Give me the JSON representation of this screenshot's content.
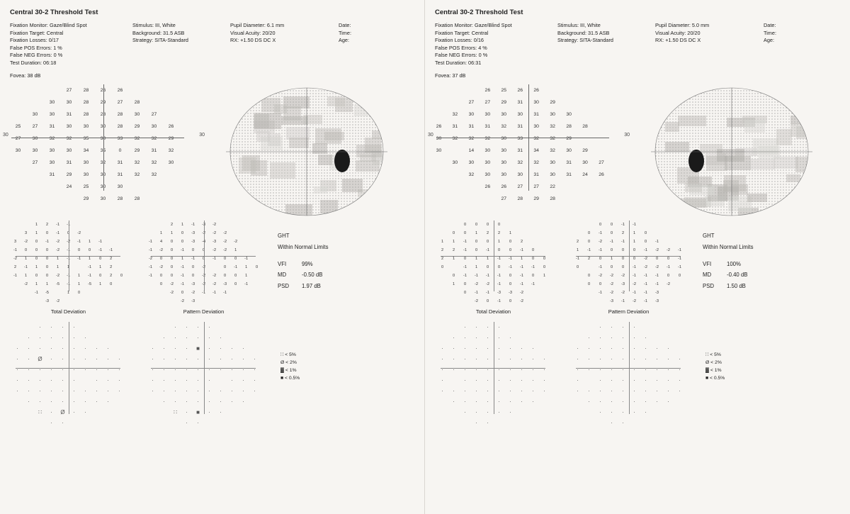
{
  "test_title": "Central 30-2 Threshold Test",
  "header_labels": {
    "fix_mon": "Fixation Monitor:",
    "fix_tgt": "Fixation Target:",
    "fix_loss": "Fixation Losses:",
    "fpe": "False POS Errors:",
    "fne": "False NEG Errors:",
    "dur": "Test Duration:",
    "fovea": "Fovea:",
    "stim": "Stimulus:",
    "bg": "Background:",
    "strat": "Strategy:",
    "pupil": "Pupil Diameter:",
    "va": "Visual Acuity:",
    "rx": "RX:",
    "date": "Date:",
    "time": "Time:",
    "age": "Age:"
  },
  "stats_labels": {
    "ght": "GHT",
    "vfi": "VFI",
    "md": "MD",
    "psd": "PSD",
    "td": "Total Deviation",
    "pd": "Pattern Deviation"
  },
  "legend": [
    "∷ < 5%",
    "Ø < 2%",
    "▓ < 1%",
    "■ < 0.5%"
  ],
  "colors": {
    "bg": "#f7f5f2",
    "text": "#222222",
    "axis": "#666666",
    "gray_ring": "#7a7a7a",
    "blindspot": "#1a1a1a"
  },
  "left": {
    "header": {
      "fix_mon": "Gaze/Blind Spot",
      "fix_tgt": "Central",
      "fix_loss": "0/17",
      "fpe": "1 %",
      "fne": "0 %",
      "dur": "06:18",
      "fovea": "38 dB",
      "stim": "III, White",
      "bg": "31.5 ASB",
      "strat": "SITA-Standard",
      "pupil": "6.1 mm",
      "va": "20/20",
      "rx": "+1.50 DS    DC  X",
      "date": "",
      "time": "",
      "age": ""
    },
    "thresh_rows": [
      [
        "",
        "",
        "",
        "27",
        "28",
        "26",
        "26",
        "",
        "",
        ""
      ],
      [
        "",
        "",
        "30",
        "30",
        "28",
        "29",
        "27",
        "28",
        "",
        ""
      ],
      [
        "",
        "30",
        "30",
        "31",
        "28",
        "28",
        "28",
        "30",
        "27",
        ""
      ],
      [
        "25",
        "27",
        "31",
        "30",
        "30",
        "30",
        "28",
        "29",
        "30",
        "26"
      ],
      [
        "27",
        "30",
        "32",
        "32",
        "35",
        "30",
        "33",
        "32",
        "32",
        "29"
      ],
      [
        "30",
        "30",
        "30",
        "30",
        "34",
        "35",
        "0",
        "29",
        "31",
        "32"
      ],
      [
        "",
        "27",
        "30",
        "31",
        "30",
        "32",
        "31",
        "32",
        "32",
        "30"
      ],
      [
        "",
        "",
        "31",
        "29",
        "30",
        "30",
        "31",
        "32",
        "32",
        ""
      ],
      [
        "",
        "",
        "",
        "24",
        "25",
        "30",
        "30",
        "",
        "",
        ""
      ],
      [
        "",
        "",
        "",
        "",
        "29",
        "30",
        "28",
        "28",
        "",
        "",
        ""
      ]
    ],
    "thresh_side_left": "30",
    "thresh_side_right": "30",
    "total_dev_rows": [
      [
        "",
        "",
        "1",
        "2",
        "-1",
        "-1",
        "",
        "",
        ""
      ],
      [
        "",
        "3",
        "1",
        "0",
        "-1",
        "0",
        "-2",
        "",
        ""
      ],
      [
        "3",
        "-2",
        "0",
        "-1",
        "-2",
        "-2",
        "-1",
        "1",
        "-1"
      ],
      [
        "-1",
        "0",
        "0",
        "0",
        "-2",
        "-1",
        "0",
        "0",
        "-1",
        "-1"
      ],
      [
        "-2",
        "1",
        "0",
        "0",
        "1",
        "-1",
        "-1",
        "1",
        "0",
        "2"
      ],
      [
        "2",
        "-1",
        "1",
        "0",
        "1",
        "1",
        "",
        "-1",
        "1",
        "2"
      ],
      [
        "-1",
        "1",
        "0",
        "0",
        "-2",
        "-1",
        "1",
        "-1",
        "0",
        "2",
        "0"
      ],
      [
        "",
        "-2",
        "1",
        "1",
        "-5",
        "-1",
        "1",
        "-5",
        "1",
        "0",
        ""
      ],
      [
        "",
        "",
        "-1",
        "-5",
        "",
        "1",
        "0",
        "",
        "",
        ""
      ],
      [
        "",
        "",
        "",
        "-3",
        "-2",
        "",
        "",
        "",
        "",
        ""
      ]
    ],
    "pattern_dev_rows": [
      [
        "",
        "",
        "2",
        "1",
        "-1",
        "-3",
        "-2",
        "",
        ""
      ],
      [
        "",
        "1",
        "1",
        "0",
        "-3",
        "-2",
        "-2",
        "-2",
        ""
      ],
      [
        "-1",
        "4",
        "0",
        "0",
        "-3",
        "-4",
        "-3",
        "-2",
        "-2"
      ],
      [
        "-1",
        "-2",
        "0",
        "-1",
        "0",
        "0",
        "-2",
        "-2",
        "1"
      ],
      [
        "-2",
        "0",
        "0",
        "1",
        "-1",
        "0",
        "-1",
        "0",
        "0",
        "-1"
      ],
      [
        "-1",
        "-2",
        "0",
        "-1",
        "0",
        "-2",
        "",
        "0",
        "-1",
        "1",
        "0"
      ],
      [
        "-1",
        "0",
        "0",
        "-1",
        "0",
        "-2",
        "-2",
        "0",
        "0",
        "1",
        ""
      ],
      [
        "",
        "0",
        "-2",
        "-1",
        "-3",
        "-2",
        "-2",
        "-3",
        "0",
        "-1",
        ""
      ],
      [
        "",
        "",
        "-2",
        "0",
        "-2",
        "-1",
        "-1",
        "-1",
        "",
        ""
      ],
      [
        "",
        "",
        "",
        "-2",
        "-3",
        "",
        "",
        "",
        "",
        ""
      ]
    ],
    "stats": {
      "ght": "Within Normal Limits",
      "vfi": "99%",
      "md": "-0.50 dB",
      "psd": "1.97 dB"
    },
    "td_prob": [
      [
        "",
        "",
        "·",
        "·",
        "·",
        "·",
        "",
        "",
        ""
      ],
      [
        "",
        "·",
        "·",
        "·",
        "·",
        "·",
        "·",
        "",
        ""
      ],
      [
        "·",
        "·",
        "·",
        "·",
        "·",
        "·",
        "·",
        "·",
        "·"
      ],
      [
        "·",
        "·",
        "Ø",
        "·",
        "·",
        "·",
        "·",
        "·",
        "·",
        "·"
      ],
      [
        "·",
        "·",
        "·",
        "·",
        "·",
        "·",
        "·",
        "·",
        "·",
        "·"
      ],
      [
        "·",
        "·",
        "·",
        "·",
        "·",
        "·",
        "",
        "·",
        "·",
        "·"
      ],
      [
        "·",
        "·",
        "·",
        "·",
        "·",
        "·",
        "·",
        "·",
        "·",
        "·"
      ],
      [
        "",
        "·",
        "·",
        "·",
        "·",
        "·",
        "·",
        "·",
        "·",
        ""
      ],
      [
        "",
        "",
        "∷",
        "·",
        "Ø",
        "·",
        "·",
        "",
        "",
        ""
      ],
      [
        "",
        "",
        "",
        "·",
        "·",
        "",
        "",
        "",
        "",
        ""
      ]
    ],
    "pd_prob": [
      [
        "",
        "",
        "·",
        "·",
        "·",
        "·",
        "",
        "",
        ""
      ],
      [
        "",
        "·",
        "·",
        "·",
        "·",
        "·",
        "·",
        "",
        ""
      ],
      [
        "·",
        "·",
        "·",
        "·",
        "■",
        "·",
        "·",
        "·",
        "·"
      ],
      [
        "·",
        "·",
        "·",
        "·",
        "·",
        "·",
        "·",
        "·",
        "·",
        "·"
      ],
      [
        "·",
        "·",
        "·",
        "·",
        "·",
        "·",
        "·",
        "·",
        "·",
        "·"
      ],
      [
        "·",
        "·",
        "·",
        "·",
        "·",
        "·",
        "",
        "·",
        "·",
        "·"
      ],
      [
        "·",
        "·",
        "·",
        "·",
        "·",
        "·",
        "·",
        "·",
        "·",
        "·"
      ],
      [
        "",
        "·",
        "·",
        "·",
        "·",
        "·",
        "·",
        "·",
        "·",
        ""
      ],
      [
        "",
        "",
        "∷",
        "·",
        "■",
        "·",
        "·",
        "",
        "",
        ""
      ],
      [
        "",
        "",
        "",
        "·",
        "·",
        "",
        "",
        "",
        "",
        ""
      ]
    ],
    "blindspot_side": "right"
  },
  "right": {
    "header": {
      "fix_mon": "Gaze/Blind Spot",
      "fix_tgt": "Central",
      "fix_loss": "0/16",
      "fpe": "4 %",
      "fne": "0 %",
      "dur": "06:31",
      "fovea": "37 dB",
      "stim": "III, White",
      "bg": "31.5 ASB",
      "strat": "SITA-Standard",
      "pupil": "5.0 mm",
      "va": "20/20",
      "rx": "+1.50 DS    DC  X",
      "date": "",
      "time": "",
      "age": ""
    },
    "thresh_rows": [
      [
        "",
        "",
        "",
        "26",
        "25",
        "26",
        "26",
        "",
        "",
        ""
      ],
      [
        "",
        "",
        "27",
        "27",
        "29",
        "31",
        "30",
        "29",
        "",
        ""
      ],
      [
        "",
        "32",
        "30",
        "30",
        "30",
        "30",
        "31",
        "30",
        "30",
        ""
      ],
      [
        "26",
        "31",
        "31",
        "31",
        "32",
        "31",
        "30",
        "32",
        "28",
        "28"
      ],
      [
        "30",
        "32",
        "32",
        "32",
        "30",
        "33",
        "32",
        "32",
        "29",
        ""
      ],
      [
        "30",
        "",
        "14",
        "30",
        "30",
        "31",
        "34",
        "32",
        "30",
        "29"
      ],
      [
        "",
        "30",
        "30",
        "30",
        "30",
        "32",
        "32",
        "30",
        "31",
        "30",
        "27"
      ],
      [
        "",
        "",
        "32",
        "30",
        "30",
        "30",
        "31",
        "30",
        "31",
        "24",
        "26",
        ""
      ],
      [
        "",
        "",
        "",
        "26",
        "26",
        "27",
        "27",
        "22",
        "",
        "",
        ""
      ],
      [
        "",
        "",
        "",
        "",
        "27",
        "28",
        "29",
        "28",
        "",
        "",
        ""
      ]
    ],
    "thresh_side_left": "30",
    "thresh_side_right": "30",
    "total_dev_rows": [
      [
        "",
        "",
        "0",
        "0",
        "0",
        "0",
        "",
        "",
        ""
      ],
      [
        "",
        "0",
        "0",
        "1",
        "2",
        "2",
        "1",
        "",
        ""
      ],
      [
        "1",
        "1",
        "-1",
        "0",
        "0",
        "1",
        "0",
        "2",
        "",
        ""
      ],
      [
        "2",
        "2",
        "-1",
        "0",
        "-1",
        "0",
        "0",
        "-1",
        "0",
        ""
      ],
      [
        "2",
        "1",
        "0",
        "1",
        "1",
        "-1",
        "-1",
        "1",
        "0",
        "0"
      ],
      [
        "0",
        "",
        "-1",
        "1",
        "0",
        "0",
        "-1",
        "-1",
        "-1",
        "0"
      ],
      [
        "",
        "0",
        "-1",
        "-1",
        "-1",
        "-1",
        "0",
        "-1",
        "0",
        "1"
      ],
      [
        "",
        "1",
        "0",
        "-2",
        "-2",
        "-1",
        "0",
        "-1",
        "-1",
        ""
      ],
      [
        "",
        "",
        "0",
        "-1",
        "-1",
        "-3",
        "-3",
        "-2",
        "",
        ""
      ],
      [
        "",
        "",
        "",
        "-2",
        "0",
        "-1",
        "0",
        "-2",
        "",
        ""
      ]
    ],
    "pattern_dev_rows": [
      [
        "",
        "",
        "0",
        "0",
        "-1",
        "-1",
        "",
        "",
        ""
      ],
      [
        "",
        "0",
        "-1",
        "0",
        "2",
        "1",
        "0",
        "",
        ""
      ],
      [
        "2",
        "0",
        "-2",
        "-1",
        "-1",
        "1",
        "0",
        "-1",
        "",
        ""
      ],
      [
        "1",
        "-1",
        "-1",
        "0",
        "0",
        "0",
        "-1",
        "-2",
        "-2",
        "-1"
      ],
      [
        "-1",
        "2",
        "0",
        "1",
        "0",
        "0",
        "-2",
        "0",
        "0",
        "-1"
      ],
      [
        "0",
        "",
        "-1",
        "0",
        "0",
        "-1",
        "-2",
        "-2",
        "-1",
        "-1"
      ],
      [
        "",
        "0",
        "-2",
        "-2",
        "-2",
        "-1",
        "-1",
        "-1",
        "0",
        "0"
      ],
      [
        "",
        "0",
        "0",
        "-2",
        "-3",
        "-2",
        "-1",
        "-1",
        "-2",
        ""
      ],
      [
        "",
        "",
        "-1",
        "-2",
        "-2",
        "-1",
        "-1",
        "-3",
        "",
        ""
      ],
      [
        "",
        "",
        "",
        "-3",
        "-1",
        "-2",
        "-1",
        "-3",
        "",
        ""
      ]
    ],
    "stats": {
      "ght": "Within Normal Limits",
      "vfi": "100%",
      "md": "-0.40 dB",
      "psd": "1.50 dB"
    },
    "td_prob": [
      [
        "",
        "",
        "·",
        "·",
        "·",
        "·",
        "",
        "",
        ""
      ],
      [
        "",
        "·",
        "·",
        "·",
        "·",
        "·",
        "·",
        "",
        ""
      ],
      [
        "·",
        "·",
        "·",
        "·",
        "·",
        "·",
        "·",
        "·",
        "·"
      ],
      [
        "·",
        "·",
        "·",
        "·",
        "·",
        "·",
        "·",
        "·",
        "·",
        "·"
      ],
      [
        "·",
        "·",
        "·",
        "·",
        "·",
        "·",
        "·",
        "·",
        "·",
        "·"
      ],
      [
        "·",
        "",
        "·",
        "·",
        "·",
        "·",
        "·",
        "·",
        "·",
        "·"
      ],
      [
        "·",
        "·",
        "·",
        "·",
        "·",
        "·",
        "·",
        "·",
        "·",
        "·"
      ],
      [
        "",
        "·",
        "·",
        "·",
        "·",
        "·",
        "·",
        "·",
        "·",
        ""
      ],
      [
        "",
        "",
        "·",
        "·",
        "·",
        "·",
        "·",
        "",
        "",
        ""
      ],
      [
        "",
        "",
        "",
        "·",
        "·",
        "",
        "",
        "",
        "",
        ""
      ]
    ],
    "pd_prob": [
      [
        "",
        "",
        "·",
        "·",
        "·",
        "·",
        "",
        "",
        ""
      ],
      [
        "",
        "·",
        "·",
        "·",
        "·",
        "·",
        "·",
        "",
        ""
      ],
      [
        "·",
        "·",
        "·",
        "·",
        "·",
        "·",
        "·",
        "·",
        "·"
      ],
      [
        "·",
        "·",
        "·",
        "·",
        "·",
        "·",
        "·",
        "·",
        "·",
        "·"
      ],
      [
        "·",
        "·",
        "·",
        "·",
        "·",
        "·",
        "·",
        "·",
        "·",
        "·"
      ],
      [
        "·",
        "",
        "·",
        "·",
        "·",
        "·",
        "·",
        "·",
        "·",
        "·"
      ],
      [
        "·",
        "·",
        "·",
        "·",
        "·",
        "·",
        "·",
        "·",
        "·",
        "·"
      ],
      [
        "",
        "·",
        "·",
        "·",
        "·",
        "·",
        "·",
        "·",
        "·",
        ""
      ],
      [
        "",
        "",
        "·",
        "·",
        "·",
        "·",
        "·",
        "",
        "",
        ""
      ],
      [
        "",
        "",
        "",
        "·",
        "·",
        "",
        "",
        "",
        "",
        ""
      ]
    ],
    "blindspot_side": "left"
  }
}
